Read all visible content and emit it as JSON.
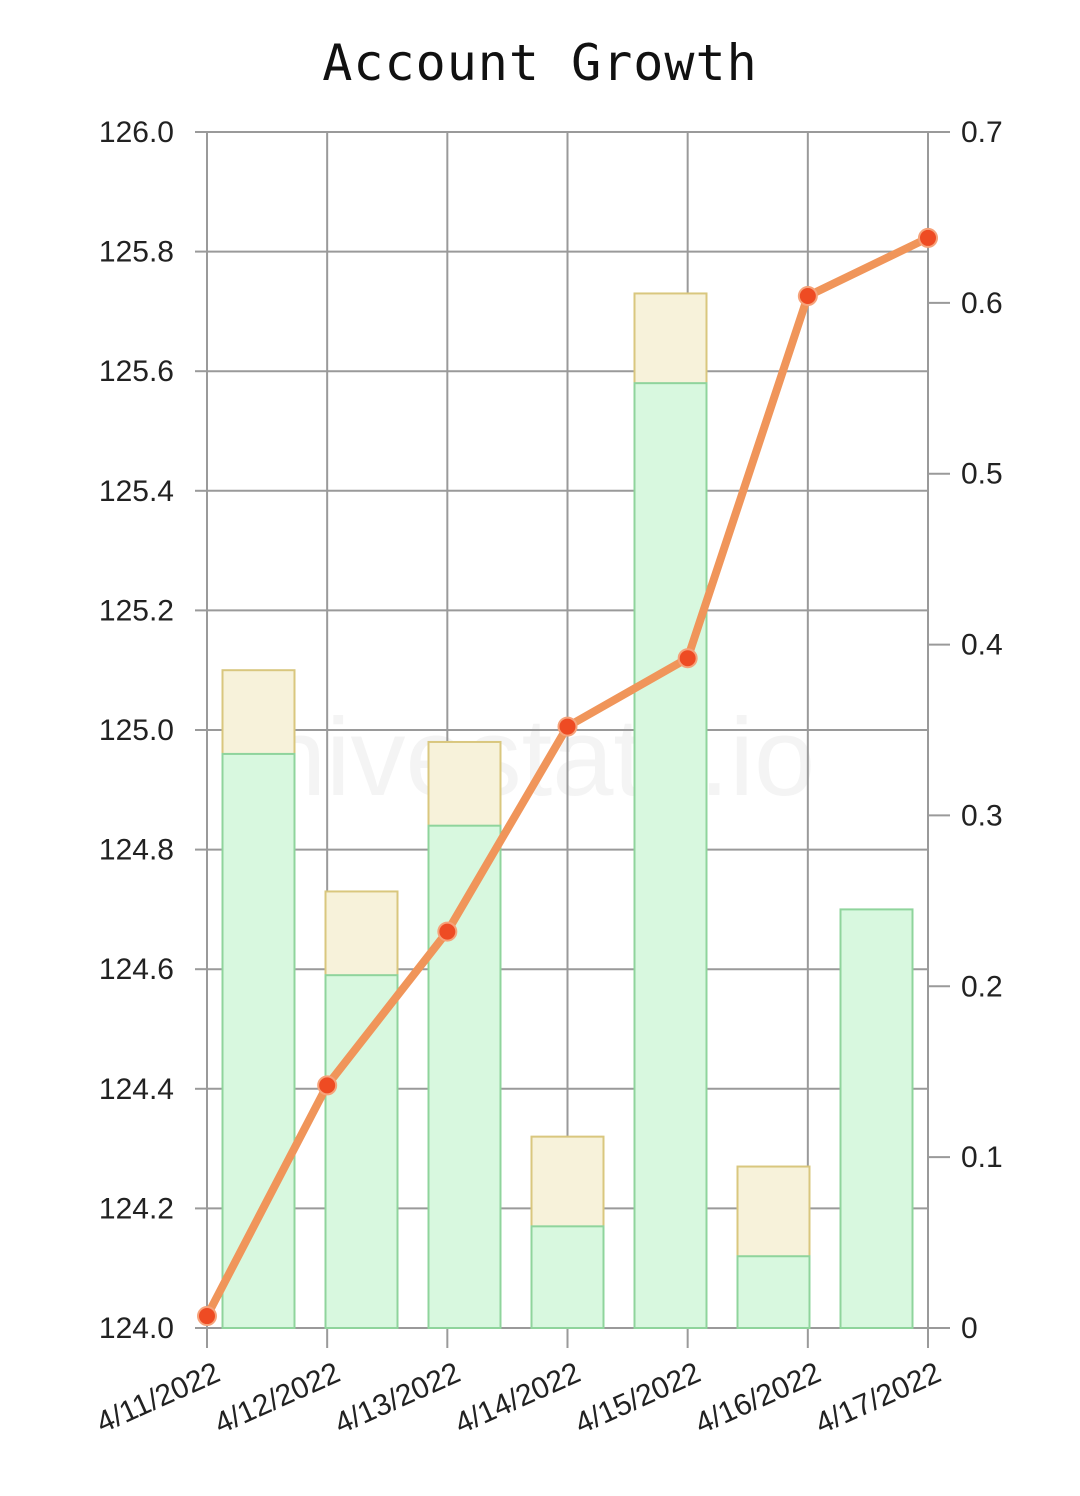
{
  "watermark": "hivestats.io",
  "colors": {
    "grid": "#9a9a9a",
    "bar_fill": "#d8f8df",
    "bar_stroke": "#8fd49c",
    "bar_top_fill": "#f7f2da",
    "bar_top_stroke": "#d9c77e",
    "line": "#f0955a",
    "point": "#ee4b23"
  },
  "chart_data": {
    "type": "bar",
    "title": "Account Growth",
    "categories": [
      "4/11/2022",
      "4/12/2022",
      "4/13/2022",
      "4/14/2022",
      "4/15/2022",
      "4/16/2022",
      "4/17/2022"
    ],
    "bar_series": [
      {
        "values": [
          124.96,
          124.59,
          124.84,
          124.17,
          125.58,
          124.12,
          124.7
        ],
        "axis": "left"
      },
      {
        "values": [
          125.1,
          124.73,
          124.98,
          124.32,
          125.73,
          124.27,
          124.7
        ],
        "axis": "left"
      }
    ],
    "line_series": {
      "axis": "right",
      "x": [
        "4/11/2022",
        "4/12/2022",
        "4/13/2022",
        "4/14/2022",
        "4/15/2022",
        "4/16/2022",
        "4/17/2022"
      ],
      "values": [
        0.007,
        0.142,
        0.232,
        0.352,
        0.392,
        0.604,
        0.638
      ]
    },
    "y_left": {
      "min": 124.0,
      "max": 126.0,
      "ticks": [
        "124.0",
        "124.2",
        "124.4",
        "124.6",
        "124.8",
        "125.0",
        "125.2",
        "125.4",
        "125.6",
        "125.8",
        "126.0"
      ]
    },
    "y_right": {
      "min": 0,
      "max": 0.7,
      "ticks": [
        "0",
        "0.1",
        "0.2",
        "0.3",
        "0.4",
        "0.5",
        "0.6",
        "0.7"
      ]
    },
    "grid": true
  }
}
